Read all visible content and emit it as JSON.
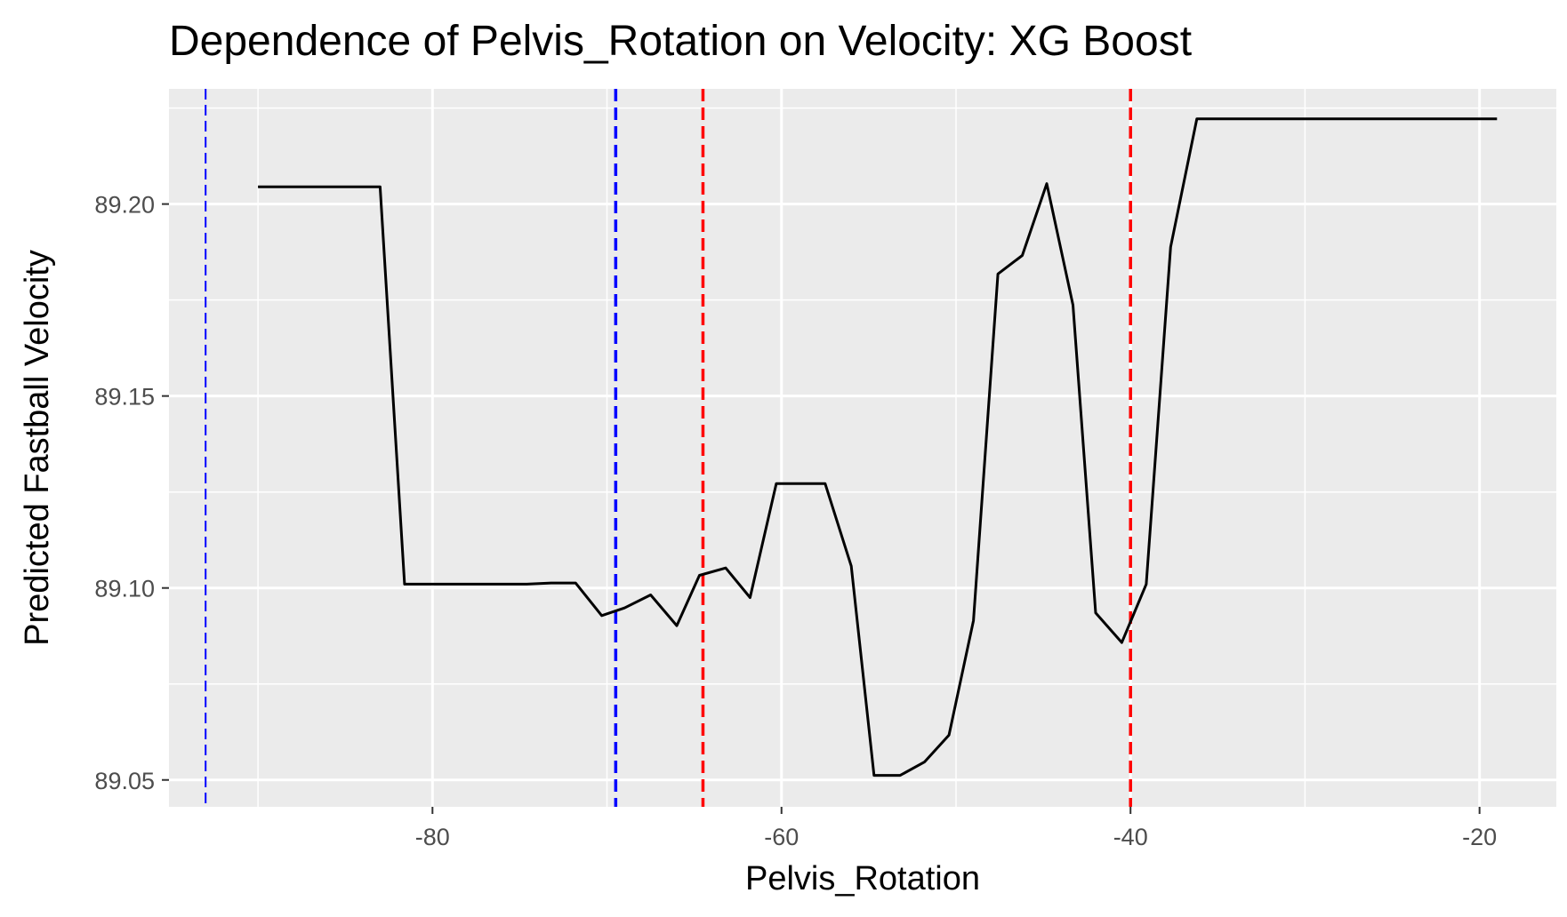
{
  "chart_data": {
    "type": "line",
    "title": "Dependence of Pelvis_Rotation on Velocity: XG Boost",
    "xlabel": "Pelvis_Rotation",
    "ylabel": "Predicted Fastball Velocity",
    "xlim": [
      -95.1,
      -15.6
    ],
    "ylim": [
      89.043,
      89.23
    ],
    "x_ticks": [
      {
        "value": -80,
        "label": "-80"
      },
      {
        "value": -60,
        "label": "-60"
      },
      {
        "value": -40,
        "label": "-40"
      },
      {
        "value": -20,
        "label": "-20"
      }
    ],
    "y_ticks": [
      {
        "value": 89.05,
        "label": "89.05"
      },
      {
        "value": 89.1,
        "label": "89.10"
      },
      {
        "value": 89.15,
        "label": "89.15"
      },
      {
        "value": 89.2,
        "label": "89.20"
      }
    ],
    "grid": true,
    "panel_background": "#ebebeb",
    "grid_color": "#ffffff",
    "line_color": "#000000",
    "series": [
      {
        "x": [
          -90.0,
          -83.0,
          -81.6,
          -80.2,
          -78.8,
          -77.4,
          -76.0,
          -74.6,
          -73.2,
          -71.8,
          -70.3,
          -69.0,
          -67.5,
          -66.0,
          -64.7,
          -63.2,
          -61.8,
          -60.3,
          -59.0,
          -57.5,
          -56.0,
          -54.7,
          -53.2,
          -51.8,
          -50.4,
          -49.0,
          -47.6,
          -46.2,
          -44.8,
          -43.3,
          -42.0,
          -40.5,
          -39.1,
          -37.7,
          -36.2,
          -19.0
        ],
        "y": [
          89.2045,
          89.2045,
          89.101,
          89.101,
          89.101,
          89.101,
          89.101,
          89.101,
          89.1013,
          89.1013,
          89.0928,
          89.0948,
          89.0982,
          89.0902,
          89.1033,
          89.1052,
          89.0975,
          89.1272,
          89.1272,
          89.1272,
          89.1057,
          89.0512,
          89.0512,
          89.0547,
          89.0617,
          89.0915,
          89.1818,
          89.1866,
          89.2053,
          89.1737,
          89.0935,
          89.0858,
          89.101,
          89.1888,
          89.2222,
          89.2222
        ]
      }
    ],
    "vlines": [
      {
        "x": -93.0,
        "color": "#0000ff",
        "style": "dashed-thin"
      },
      {
        "x": -69.5,
        "color": "#0000ff",
        "style": "dashed"
      },
      {
        "x": -64.5,
        "color": "#ff0000",
        "style": "dashed"
      },
      {
        "x": -40.0,
        "color": "#ff0000",
        "style": "dashed"
      }
    ]
  }
}
